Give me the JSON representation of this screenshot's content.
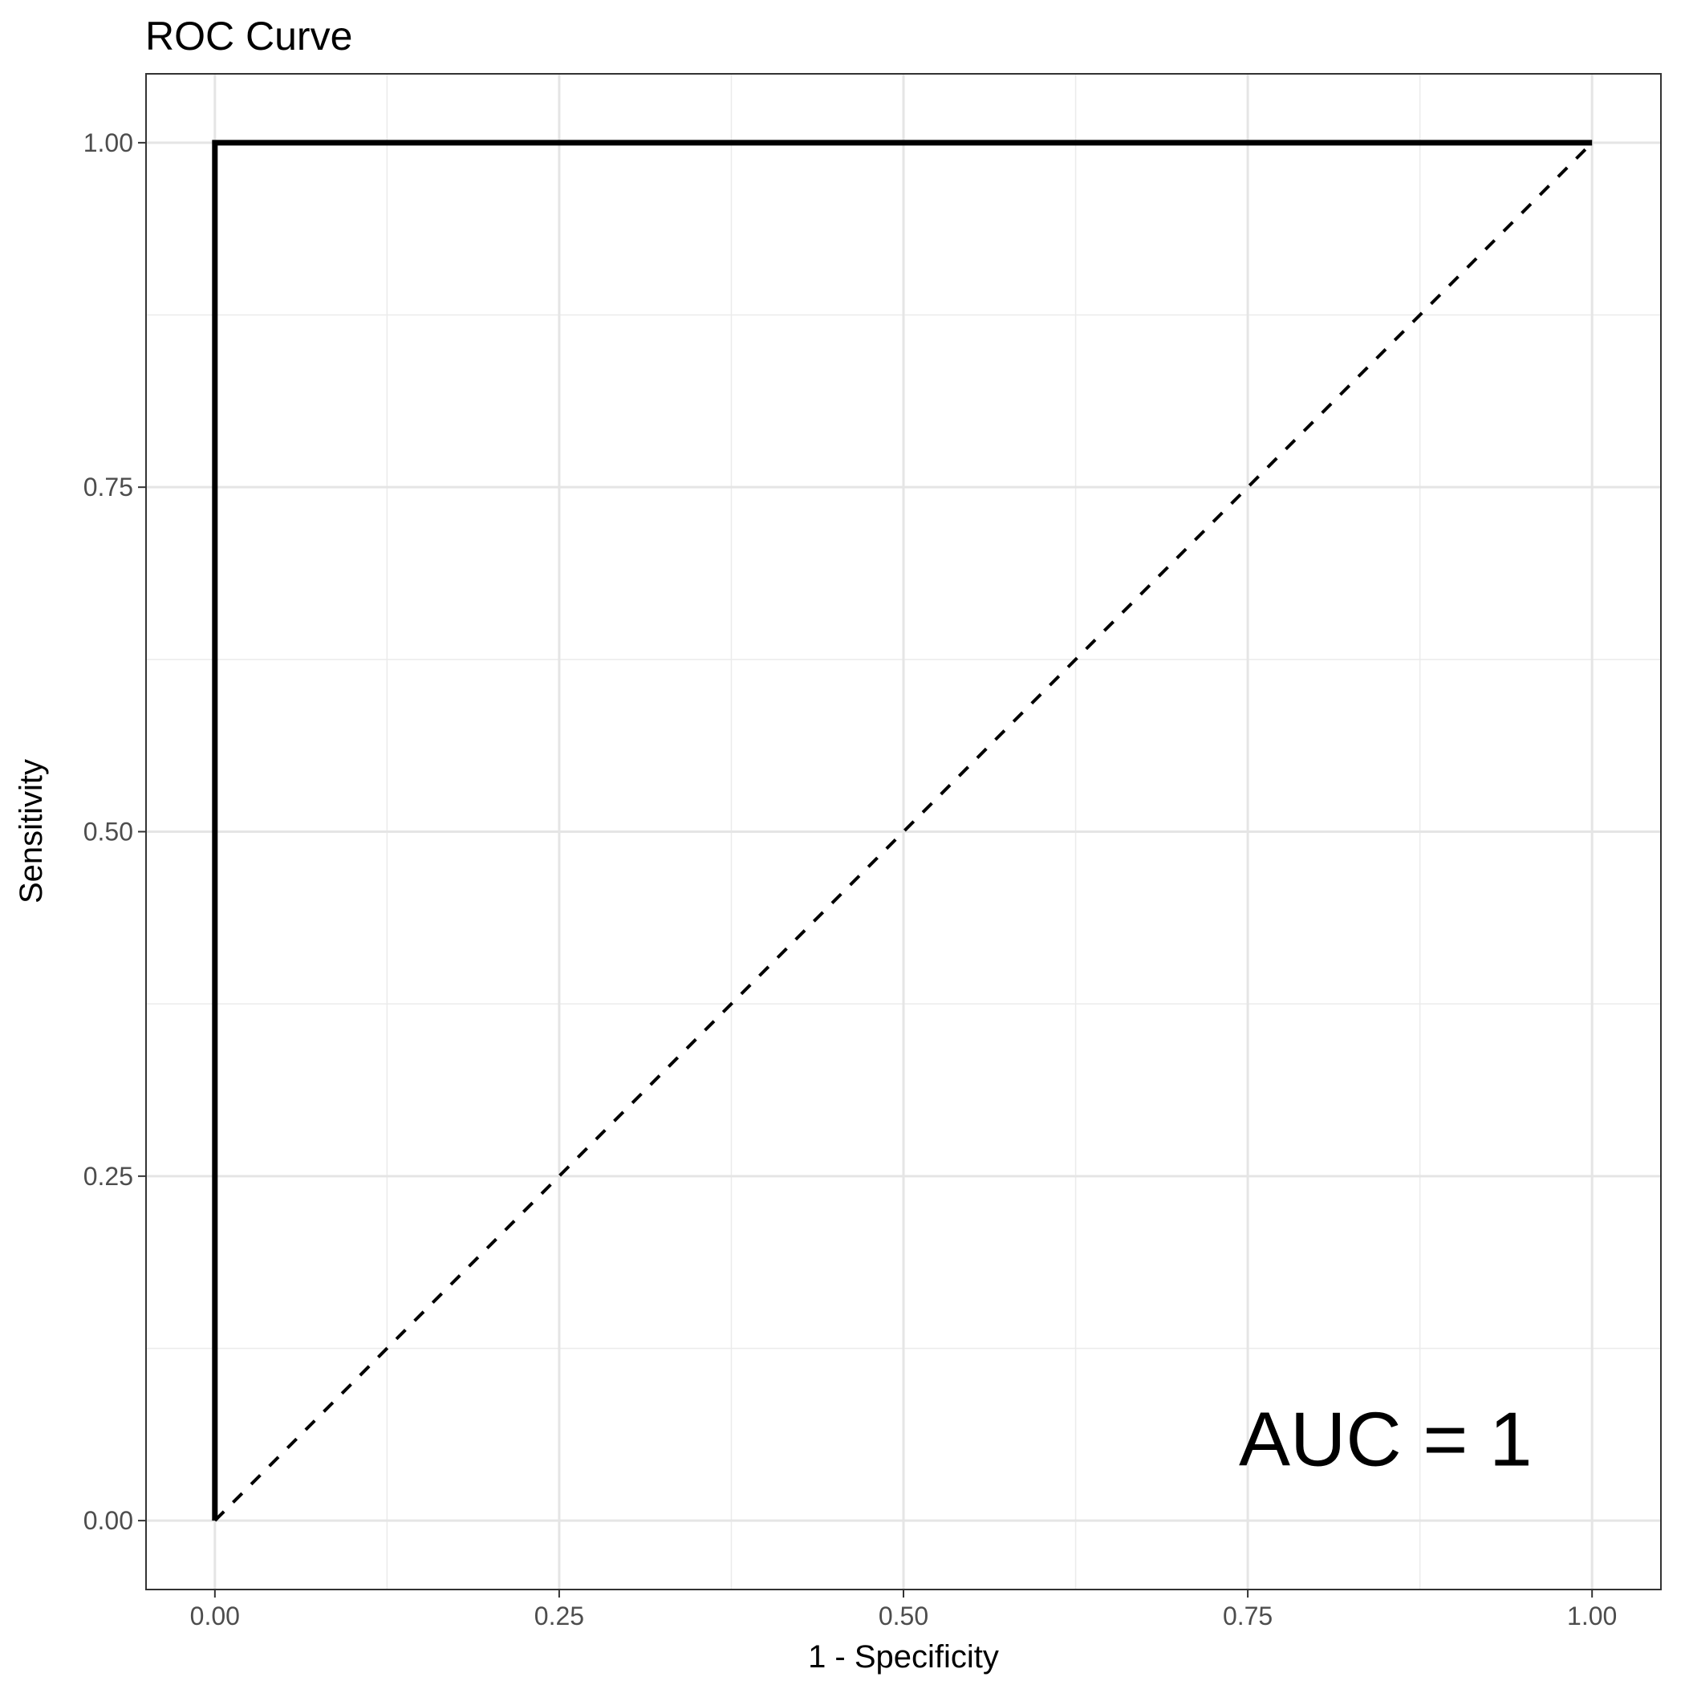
{
  "chart_data": {
    "type": "line",
    "title": "ROC Curve",
    "xlabel": "1 - Specificity",
    "ylabel": "Sensitivity",
    "xlim": [
      -0.05,
      1.05
    ],
    "ylim": [
      -0.05,
      1.05
    ],
    "x_ticks": [
      0,
      0.25,
      0.5,
      0.75,
      1
    ],
    "y_ticks": [
      0,
      0.25,
      0.5,
      0.75,
      1
    ],
    "x_tick_labels": [
      "0.00",
      "0.25",
      "0.50",
      "0.75",
      "1.00"
    ],
    "y_tick_labels": [
      "0.00",
      "0.25",
      "0.50",
      "0.75",
      "1.00"
    ],
    "grid": true,
    "series": [
      {
        "x": [
          0,
          0,
          1
        ],
        "y": [
          0,
          1,
          1
        ],
        "style": "solid",
        "color": "#000000"
      },
      {
        "x": [
          0,
          1
        ],
        "y": [
          0,
          1
        ],
        "style": "dashed",
        "color": "#000000"
      }
    ],
    "annotations": [
      {
        "text": "AUC = 1",
        "x": 0.85,
        "y": 0.04
      }
    ],
    "legend": "none"
  }
}
